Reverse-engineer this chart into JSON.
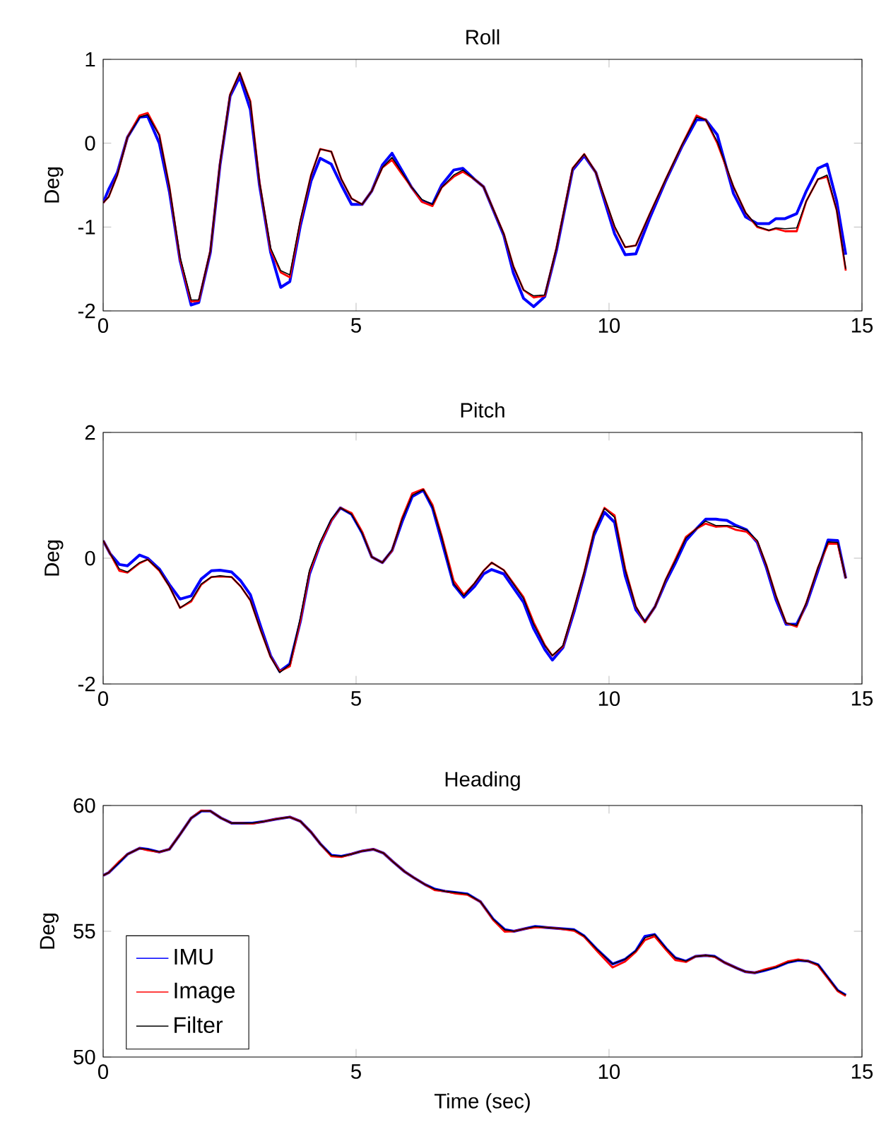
{
  "chart_data": [
    {
      "type": "line",
      "title": "Roll",
      "ylabel": "Deg",
      "xlim": [
        0,
        15
      ],
      "xticks": [
        0,
        5,
        10,
        15
      ],
      "ylim": [
        -2,
        1
      ],
      "yticks": [
        -2,
        -1,
        0,
        1
      ],
      "x": [
        0,
        0.11,
        0.28,
        0.48,
        0.72,
        0.88,
        1.11,
        1.31,
        1.52,
        1.74,
        1.89,
        2.12,
        2.31,
        2.51,
        2.7,
        2.91,
        3.09,
        3.31,
        3.51,
        3.69,
        3.9,
        4.11,
        4.29,
        4.51,
        4.71,
        4.91,
        5.12,
        5.31,
        5.52,
        5.71,
        5.91,
        6.09,
        6.3,
        6.51,
        6.69,
        6.93,
        7.11,
        7.34,
        7.52,
        7.92,
        8.11,
        8.31,
        8.51,
        8.73,
        8.96,
        9.28,
        9.51,
        9.74,
        10.11,
        10.32,
        10.53,
        10.8,
        11.12,
        11.45,
        11.73,
        11.91,
        12.14,
        12.46,
        12.7,
        12.93,
        13.16,
        13.3,
        13.48,
        13.71,
        13.9,
        14.13,
        14.31,
        14.5,
        14.68
      ],
      "series": [
        {
          "color": "#0000ff",
          "values": [
            -0.71,
            -0.55,
            -0.35,
            0.07,
            0.31,
            0.32,
            0.0,
            -0.58,
            -1.4,
            -1.93,
            -1.9,
            -1.3,
            -0.26,
            0.56,
            0.79,
            0.4,
            -0.5,
            -1.3,
            -1.72,
            -1.65,
            -0.98,
            -0.45,
            -0.18,
            -0.25,
            -0.5,
            -0.73,
            -0.73,
            -0.57,
            -0.26,
            -0.12,
            -0.33,
            -0.52,
            -0.69,
            -0.73,
            -0.5,
            -0.32,
            -0.3,
            -0.43,
            -0.52,
            -1.1,
            -1.55,
            -1.85,
            -1.95,
            -1.83,
            -1.28,
            -0.32,
            -0.15,
            -0.35,
            -1.08,
            -1.33,
            -1.32,
            -0.9,
            -0.45,
            -0.03,
            0.28,
            0.28,
            0.1,
            -0.6,
            -0.88,
            -0.96,
            -0.96,
            -0.9,
            -0.9,
            -0.84,
            -0.57,
            -0.3,
            -0.25,
            -0.69,
            -1.33
          ]
        },
        {
          "color": "#ff0000",
          "values": [
            -0.71,
            -0.64,
            -0.38,
            0.07,
            0.33,
            0.36,
            0.1,
            -0.52,
            -1.38,
            -1.89,
            -1.88,
            -1.28,
            -0.24,
            0.58,
            0.84,
            0.5,
            -0.46,
            -1.27,
            -1.54,
            -1.6,
            -0.93,
            -0.38,
            -0.07,
            -0.1,
            -0.43,
            -0.66,
            -0.73,
            -0.57,
            -0.29,
            -0.2,
            -0.37,
            -0.52,
            -0.7,
            -0.75,
            -0.53,
            -0.4,
            -0.34,
            -0.43,
            -0.52,
            -1.08,
            -1.47,
            -1.75,
            -1.84,
            -1.82,
            -1.25,
            -0.3,
            -0.13,
            -0.35,
            -1.0,
            -1.24,
            -1.22,
            -0.85,
            -0.43,
            -0.01,
            0.33,
            0.28,
            0.0,
            -0.52,
            -0.83,
            -1.0,
            -1.04,
            -1.02,
            -1.05,
            -1.05,
            -0.69,
            -0.43,
            -0.4,
            -0.8,
            -1.52
          ]
        },
        {
          "color": "#000000",
          "values": [
            -0.71,
            -0.64,
            -0.38,
            0.07,
            0.31,
            0.34,
            0.09,
            -0.52,
            -1.36,
            -1.87,
            -1.87,
            -1.28,
            -0.24,
            0.58,
            0.84,
            0.49,
            -0.46,
            -1.25,
            -1.52,
            -1.57,
            -0.91,
            -0.38,
            -0.07,
            -0.1,
            -0.43,
            -0.66,
            -0.73,
            -0.57,
            -0.29,
            -0.17,
            -0.35,
            -0.52,
            -0.67,
            -0.73,
            -0.53,
            -0.38,
            -0.32,
            -0.43,
            -0.52,
            -1.08,
            -1.47,
            -1.75,
            -1.82,
            -1.81,
            -1.25,
            -0.3,
            -0.13,
            -0.35,
            -0.99,
            -1.24,
            -1.22,
            -0.85,
            -0.43,
            -0.01,
            0.31,
            0.28,
            0.02,
            -0.52,
            -0.83,
            -0.99,
            -1.04,
            -1.01,
            -1.02,
            -1.01,
            -0.69,
            -0.43,
            -0.38,
            -0.8,
            -1.5
          ]
        }
      ]
    },
    {
      "type": "line",
      "title": "Pitch",
      "ylabel": "Deg",
      "xlim": [
        0,
        15
      ],
      "xticks": [
        0,
        5,
        10,
        15
      ],
      "ylim": [
        -2,
        2
      ],
      "yticks": [
        -2,
        0,
        2
      ],
      "x": [
        0,
        0.14,
        0.32,
        0.48,
        0.72,
        0.88,
        1.11,
        1.31,
        1.52,
        1.74,
        1.94,
        2.14,
        2.31,
        2.54,
        2.72,
        2.91,
        3.12,
        3.31,
        3.49,
        3.69,
        3.9,
        4.08,
        4.29,
        4.51,
        4.69,
        4.91,
        5.12,
        5.31,
        5.52,
        5.71,
        5.91,
        6.11,
        6.33,
        6.51,
        6.69,
        6.93,
        7.13,
        7.34,
        7.52,
        7.68,
        7.92,
        8.31,
        8.51,
        8.73,
        8.88,
        9.09,
        9.31,
        9.51,
        9.7,
        9.91,
        10.11,
        10.32,
        10.53,
        10.71,
        10.91,
        11.12,
        11.31,
        11.52,
        11.73,
        11.91,
        12.11,
        12.33,
        12.51,
        12.72,
        12.93,
        13.11,
        13.3,
        13.5,
        13.71,
        13.9,
        14.13,
        14.33,
        14.52,
        14.68
      ],
      "series": [
        {
          "color": "#0000ff",
          "values": [
            0.28,
            0.07,
            -0.1,
            -0.12,
            0.05,
            0.0,
            -0.17,
            -0.42,
            -0.65,
            -0.6,
            -0.33,
            -0.2,
            -0.19,
            -0.22,
            -0.36,
            -0.58,
            -1.1,
            -1.55,
            -1.8,
            -1.68,
            -1.0,
            -0.25,
            0.22,
            0.6,
            0.8,
            0.7,
            0.4,
            0.02,
            -0.07,
            0.12,
            0.58,
            0.98,
            1.08,
            0.8,
            0.28,
            -0.42,
            -0.62,
            -0.45,
            -0.25,
            -0.18,
            -0.25,
            -0.7,
            -1.12,
            -1.45,
            -1.62,
            -1.42,
            -0.85,
            -0.26,
            0.36,
            0.73,
            0.57,
            -0.28,
            -0.82,
            -1.01,
            -0.77,
            -0.38,
            -0.08,
            0.28,
            0.47,
            0.62,
            0.62,
            0.6,
            0.52,
            0.45,
            0.25,
            -0.15,
            -0.66,
            -1.05,
            -1.05,
            -0.74,
            -0.2,
            0.29,
            0.28,
            -0.32
          ]
        },
        {
          "color": "#ff0000",
          "values": [
            0.28,
            0.07,
            -0.2,
            -0.23,
            -0.08,
            -0.02,
            -0.2,
            -0.45,
            -0.79,
            -0.69,
            -0.42,
            -0.3,
            -0.29,
            -0.3,
            -0.45,
            -0.67,
            -1.16,
            -1.57,
            -1.8,
            -1.72,
            -0.98,
            -0.22,
            0.23,
            0.6,
            0.8,
            0.72,
            0.42,
            0.02,
            -0.07,
            0.12,
            0.64,
            1.03,
            1.1,
            0.85,
            0.36,
            -0.36,
            -0.58,
            -0.4,
            -0.2,
            -0.07,
            -0.19,
            -0.62,
            -1.02,
            -1.38,
            -1.55,
            -1.4,
            -0.8,
            -0.22,
            0.42,
            0.8,
            0.68,
            -0.17,
            -0.77,
            -1.02,
            -0.77,
            -0.34,
            -0.02,
            0.34,
            0.47,
            0.55,
            0.5,
            0.51,
            0.45,
            0.42,
            0.27,
            -0.11,
            -0.6,
            -1.03,
            -1.09,
            -0.71,
            -0.15,
            0.23,
            0.23,
            -0.32
          ]
        },
        {
          "color": "#000000",
          "values": [
            0.28,
            0.07,
            -0.17,
            -0.22,
            -0.07,
            -0.02,
            -0.19,
            -0.45,
            -0.79,
            -0.67,
            -0.41,
            -0.3,
            -0.28,
            -0.3,
            -0.45,
            -0.67,
            -1.16,
            -1.57,
            -1.82,
            -1.69,
            -0.94,
            -0.19,
            0.26,
            0.62,
            0.8,
            0.7,
            0.4,
            0.02,
            -0.07,
            0.13,
            0.62,
            1.0,
            1.09,
            0.82,
            0.34,
            -0.41,
            -0.6,
            -0.4,
            -0.2,
            -0.07,
            -0.19,
            -0.64,
            -1.05,
            -1.39,
            -1.55,
            -1.39,
            -0.79,
            -0.22,
            0.4,
            0.79,
            0.65,
            -0.19,
            -0.77,
            -1.01,
            -0.77,
            -0.34,
            -0.04,
            0.32,
            0.47,
            0.59,
            0.52,
            0.52,
            0.5,
            0.45,
            0.28,
            -0.11,
            -0.6,
            -1.03,
            -1.07,
            -0.71,
            -0.15,
            0.26,
            0.25,
            -0.32
          ]
        }
      ]
    },
    {
      "type": "line",
      "title": "Heading",
      "xlabel": "Time (sec)",
      "ylabel": "Deg",
      "xlim": [
        0,
        15
      ],
      "xticks": [
        0,
        5,
        10,
        15
      ],
      "ylim": [
        50,
        60
      ],
      "yticks": [
        50,
        55,
        60
      ],
      "legend": "bottom left",
      "x": [
        0,
        0.11,
        0.32,
        0.48,
        0.72,
        0.88,
        1.11,
        1.31,
        1.52,
        1.74,
        1.94,
        2.12,
        2.33,
        2.54,
        2.75,
        2.95,
        3.19,
        3.42,
        3.69,
        3.9,
        4.11,
        4.29,
        4.51,
        4.71,
        4.91,
        5.12,
        5.34,
        5.54,
        5.72,
        5.96,
        6.14,
        6.37,
        6.56,
        6.76,
        6.97,
        7.2,
        7.46,
        7.71,
        7.94,
        8.12,
        8.36,
        8.54,
        8.77,
        9.0,
        9.31,
        9.51,
        9.77,
        10.07,
        10.32,
        10.53,
        10.71,
        10.9,
        11.13,
        11.31,
        11.52,
        11.71,
        11.91,
        12.09,
        12.28,
        12.54,
        12.7,
        12.88,
        13.07,
        13.3,
        13.53,
        13.74,
        13.94,
        14.13,
        14.33,
        14.52,
        14.68
      ],
      "series": [
        {
          "name": "IMU",
          "color": "#0000ff",
          "values": [
            57.22,
            57.33,
            57.74,
            58.06,
            58.3,
            58.26,
            58.15,
            58.26,
            58.85,
            59.5,
            59.78,
            59.78,
            59.5,
            59.3,
            59.3,
            59.3,
            59.37,
            59.46,
            59.54,
            59.37,
            58.94,
            58.48,
            58.02,
            57.98,
            58.07,
            58.19,
            58.26,
            58.11,
            57.78,
            57.37,
            57.13,
            56.85,
            56.67,
            56.59,
            56.54,
            56.48,
            56.17,
            55.48,
            55.06,
            55.0,
            55.11,
            55.19,
            55.15,
            55.11,
            55.06,
            54.81,
            54.26,
            53.7,
            53.89,
            54.22,
            54.8,
            54.87,
            54.31,
            53.94,
            53.81,
            54.0,
            54.04,
            54.0,
            53.76,
            53.52,
            53.39,
            53.35,
            53.44,
            53.57,
            53.76,
            53.85,
            53.81,
            53.67,
            53.15,
            52.65,
            52.46
          ]
        },
        {
          "name": "Image",
          "color": "#ff0000",
          "values": [
            57.22,
            57.33,
            57.78,
            58.06,
            58.3,
            58.22,
            58.15,
            58.26,
            58.85,
            59.5,
            59.8,
            59.78,
            59.5,
            59.3,
            59.3,
            59.28,
            59.37,
            59.46,
            59.54,
            59.37,
            58.94,
            58.48,
            57.98,
            57.95,
            58.07,
            58.19,
            58.26,
            58.11,
            57.78,
            57.37,
            57.13,
            56.85,
            56.63,
            56.59,
            56.5,
            56.45,
            56.17,
            55.45,
            54.98,
            55.0,
            55.11,
            55.15,
            55.15,
            55.11,
            55.02,
            54.78,
            54.2,
            53.56,
            53.8,
            54.18,
            54.65,
            54.8,
            54.25,
            53.85,
            53.78,
            54.0,
            54.04,
            53.98,
            53.76,
            53.52,
            53.39,
            53.35,
            53.48,
            53.6,
            53.8,
            53.88,
            53.81,
            53.64,
            53.12,
            52.62,
            52.43
          ]
        },
        {
          "name": "Filter",
          "color": "#000000",
          "values": [
            57.22,
            57.33,
            57.74,
            58.06,
            58.3,
            58.26,
            58.15,
            58.26,
            58.85,
            59.5,
            59.78,
            59.78,
            59.5,
            59.3,
            59.3,
            59.3,
            59.37,
            59.46,
            59.54,
            59.37,
            58.94,
            58.48,
            58.02,
            57.98,
            58.07,
            58.19,
            58.26,
            58.11,
            57.78,
            57.37,
            57.13,
            56.85,
            56.67,
            56.59,
            56.54,
            56.48,
            56.17,
            55.48,
            55.06,
            55.0,
            55.11,
            55.19,
            55.15,
            55.11,
            55.06,
            54.81,
            54.26,
            53.7,
            53.89,
            54.22,
            54.74,
            54.87,
            54.31,
            53.94,
            53.81,
            54.0,
            54.04,
            54.0,
            53.76,
            53.52,
            53.39,
            53.35,
            53.44,
            53.57,
            53.76,
            53.85,
            53.81,
            53.67,
            53.15,
            52.65,
            52.46
          ]
        }
      ]
    }
  ]
}
